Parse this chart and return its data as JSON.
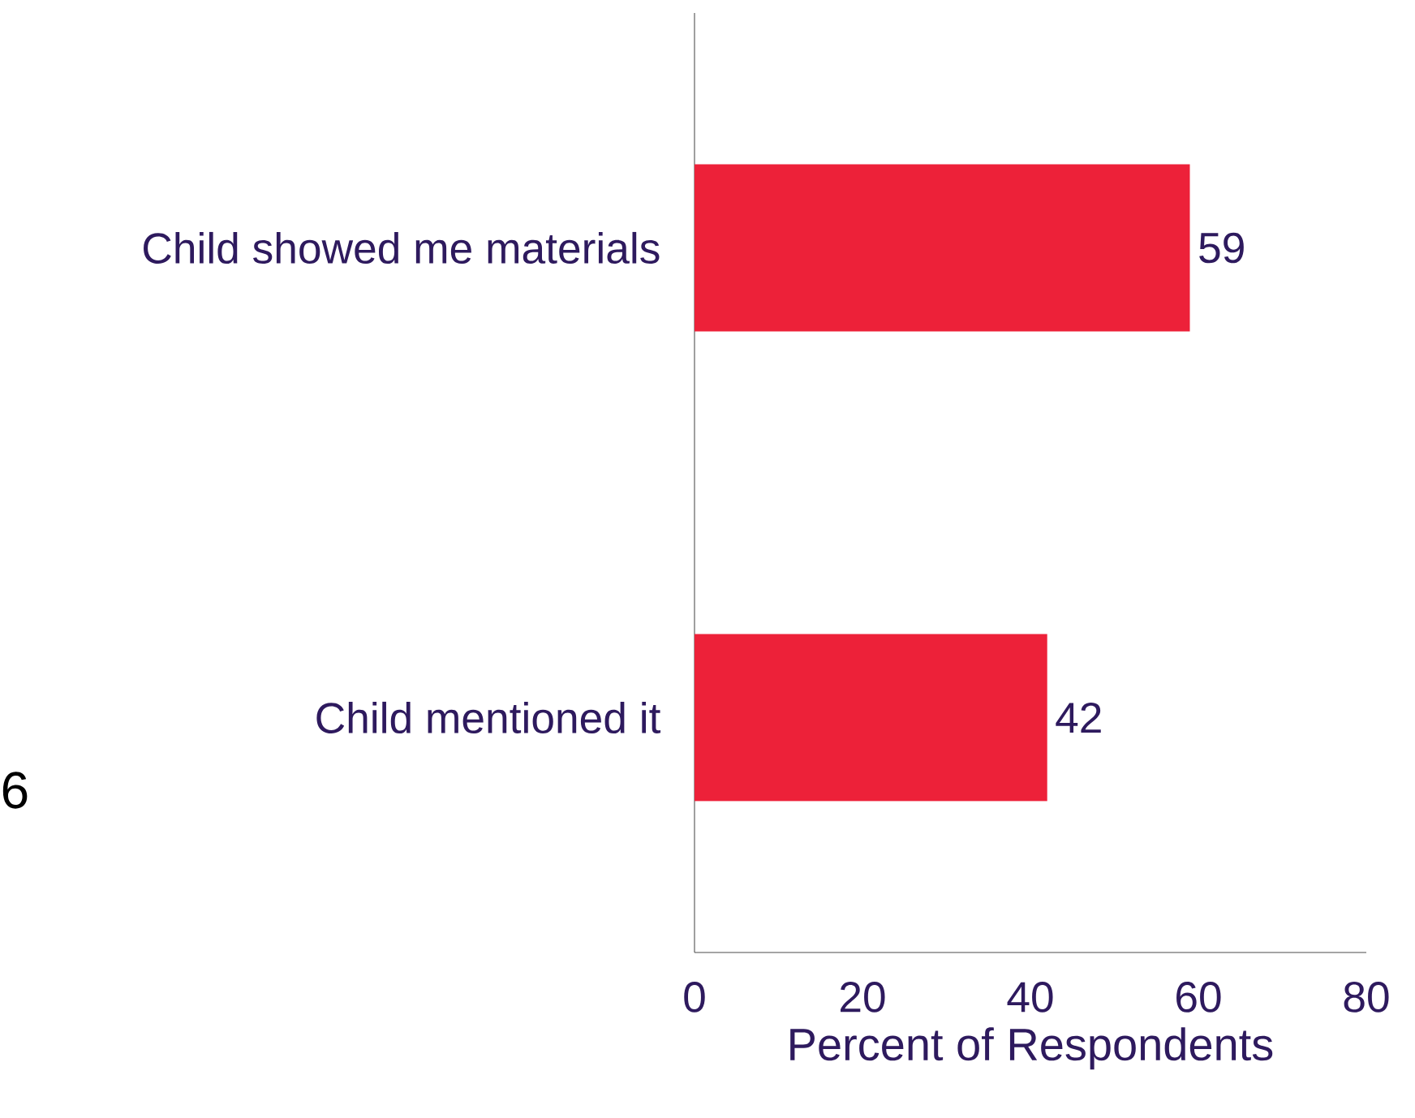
{
  "chart_data": {
    "type": "bar",
    "orientation": "horizontal",
    "categories": [
      "Child showed me materials",
      "Child mentioned it"
    ],
    "values": [
      59,
      42
    ],
    "color": "#ed2139",
    "xlim": [
      0,
      80
    ],
    "xticks": [
      0,
      20,
      40,
      60,
      80
    ],
    "xlabel": "Percent of Respondents",
    "data_labels": true,
    "annotations": [
      "6"
    ]
  }
}
